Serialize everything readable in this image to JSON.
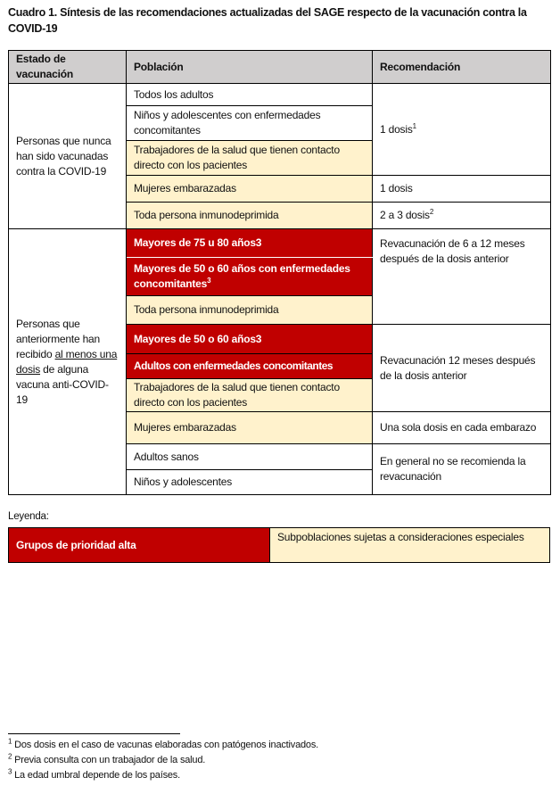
{
  "title": "Cuadro 1. Síntesis de las recomendaciones actualizadas del SAGE respecto de la vacunación contra la COVID-19",
  "colors": {
    "high_priority": "#C00000",
    "special": "#FFF2CC",
    "header": "#D0CECE"
  },
  "table": {
    "headers": [
      "Estado de vacunación",
      "Población",
      "Recomendación"
    ],
    "group1": {
      "state": "Personas que nunca han sido vacunadas contra la COVID-19",
      "rows": [
        "Todos los adultos",
        "Niños y adolescentes con enfermedades concomitantes",
        "Trabajadores de la salud que tienen contacto directo con los pacientes",
        "Mujeres embarazadas",
        "Toda persona inmunodeprimida"
      ],
      "recs": [
        {
          "text": "1 dosis",
          "sup": "1"
        },
        {
          "text": "1 dosis"
        },
        {
          "text": "2 a 3 dosis",
          "sup": "2"
        }
      ]
    },
    "group2": {
      "state_pre": "Personas que anteriormente han recibido ",
      "state_underlined": "al menos una dosis",
      "state_post": " de alguna vacuna anti-COVID-19",
      "rows": [
        "Mayores de 75 u 80 años3",
        "Mayores de 50 o 60 años con enfermedades concomitantes",
        "Toda persona inmunodeprimida",
        "Mayores de 50 o 60 años3",
        "Adultos con enfermedades concomitantes",
        "Trabajadores de la salud que tienen contacto directo con los pacientes",
        "Mujeres embarazadas",
        "Adultos sanos",
        "Niños y adolescentes"
      ],
      "row2_sup": "3",
      "recs": [
        "Revacunación de 6 a 12 meses después de la dosis anterior",
        "Revacunación 12 meses después de la dosis anterior",
        "Una sola dosis en cada embarazo",
        "En general no se recomienda la revacunación"
      ]
    }
  },
  "legend": {
    "label": "Leyenda:",
    "high": "Grupos de prioridad alta",
    "special": "Subpoblaciones sujetas a consideraciones especiales"
  },
  "footnotes": [
    {
      "n": "1",
      "text": " Dos dosis en el caso de vacunas elaboradas con patógenos inactivados."
    },
    {
      "n": "2",
      "text": " Previa consulta con un trabajador de la salud."
    },
    {
      "n": "3",
      "text": " La edad umbral depende de los países."
    }
  ]
}
